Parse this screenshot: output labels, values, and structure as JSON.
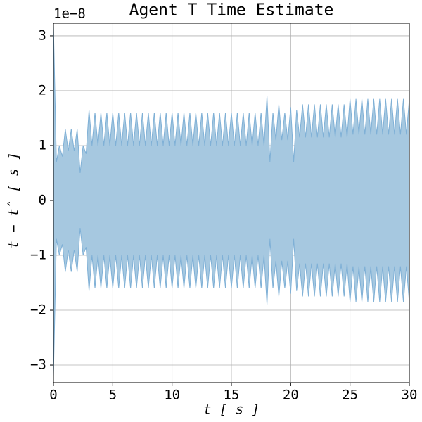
{
  "chart_data": {
    "type": "band",
    "title": "Agent T Time Estimate",
    "xlabel": "t [ s ]",
    "ylabel": "t − t̂ [ s ]",
    "y_offset_label": "1e−8",
    "fill_color": "#a6c8e0",
    "edge_color": "#7fb0d6",
    "grid": true,
    "x": [
      0,
      0.25,
      0.5,
      0.75,
      1,
      1.25,
      1.5,
      1.75,
      2,
      2.25,
      2.5,
      2.75,
      3,
      3.25,
      3.5,
      3.75,
      4,
      4.25,
      4.5,
      4.75,
      5,
      5.25,
      5.5,
      5.75,
      6,
      6.25,
      6.5,
      6.75,
      7,
      7.25,
      7.5,
      7.75,
      8,
      8.25,
      8.5,
      8.75,
      9,
      9.25,
      9.5,
      9.75,
      10,
      10.25,
      10.5,
      10.75,
      11,
      11.25,
      11.5,
      11.75,
      12,
      12.25,
      12.5,
      12.75,
      13,
      13.25,
      13.5,
      13.75,
      14,
      14.25,
      14.5,
      14.75,
      15,
      15.25,
      15.5,
      15.75,
      16,
      16.25,
      16.5,
      16.75,
      17,
      17.25,
      17.5,
      17.75,
      18,
      18.25,
      18.5,
      18.75,
      19,
      19.25,
      19.5,
      19.75,
      20,
      20.25,
      20.5,
      20.75,
      21,
      21.25,
      21.5,
      21.75,
      22,
      22.25,
      22.5,
      22.75,
      23,
      23.25,
      23.5,
      23.75,
      24,
      24.25,
      24.5,
      24.75,
      25,
      25.25,
      25.5,
      25.75,
      26,
      26.25,
      26.5,
      26.75,
      27,
      27.25,
      27.5,
      27.75,
      28,
      28.25,
      28.5,
      28.75,
      29,
      29.25,
      29.5,
      29.75,
      30
    ],
    "upper": [
      3.2,
      0.7,
      1.0,
      0.8,
      1.3,
      0.9,
      1.3,
      0.9,
      1.3,
      0.5,
      1.0,
      0.85,
      1.65,
      1.0,
      1.6,
      1.0,
      1.6,
      1.0,
      1.6,
      1.0,
      1.6,
      1.0,
      1.6,
      1.0,
      1.6,
      1.0,
      1.6,
      1.0,
      1.6,
      1.0,
      1.6,
      1.0,
      1.6,
      1.0,
      1.6,
      1.0,
      1.6,
      1.0,
      1.6,
      1.0,
      1.6,
      1.0,
      1.6,
      1.0,
      1.6,
      1.0,
      1.6,
      1.0,
      1.6,
      1.0,
      1.6,
      1.0,
      1.6,
      1.0,
      1.6,
      1.0,
      1.6,
      1.0,
      1.6,
      1.0,
      1.6,
      1.0,
      1.6,
      1.0,
      1.6,
      1.0,
      1.6,
      1.0,
      1.6,
      1.0,
      1.6,
      1.0,
      1.9,
      0.7,
      1.6,
      1.1,
      1.75,
      1.1,
      1.6,
      1.1,
      1.7,
      0.7,
      1.65,
      1.15,
      1.75,
      1.15,
      1.75,
      1.15,
      1.75,
      1.15,
      1.75,
      1.15,
      1.75,
      1.15,
      1.75,
      1.15,
      1.75,
      1.15,
      1.75,
      1.15,
      1.85,
      1.2,
      1.85,
      1.2,
      1.85,
      1.2,
      1.85,
      1.2,
      1.85,
      1.2,
      1.85,
      1.2,
      1.85,
      1.2,
      1.85,
      1.2,
      1.85,
      1.2,
      1.85,
      1.2,
      1.85
    ],
    "lower": [
      -3.2,
      -0.7,
      -1.0,
      -0.8,
      -1.3,
      -0.9,
      -1.3,
      -0.9,
      -1.3,
      -0.5,
      -1.0,
      -0.85,
      -1.65,
      -1.0,
      -1.6,
      -1.0,
      -1.6,
      -1.0,
      -1.6,
      -1.0,
      -1.6,
      -1.0,
      -1.6,
      -1.0,
      -1.6,
      -1.0,
      -1.6,
      -1.0,
      -1.6,
      -1.0,
      -1.6,
      -1.0,
      -1.6,
      -1.0,
      -1.6,
      -1.0,
      -1.6,
      -1.0,
      -1.6,
      -1.0,
      -1.6,
      -1.0,
      -1.6,
      -1.0,
      -1.6,
      -1.0,
      -1.6,
      -1.0,
      -1.6,
      -1.0,
      -1.6,
      -1.0,
      -1.6,
      -1.0,
      -1.6,
      -1.0,
      -1.6,
      -1.0,
      -1.6,
      -1.0,
      -1.6,
      -1.0,
      -1.6,
      -1.0,
      -1.6,
      -1.0,
      -1.6,
      -1.0,
      -1.6,
      -1.0,
      -1.6,
      -1.0,
      -1.9,
      -0.7,
      -1.6,
      -1.1,
      -1.75,
      -1.1,
      -1.6,
      -1.1,
      -1.7,
      -0.7,
      -1.65,
      -1.15,
      -1.75,
      -1.15,
      -1.75,
      -1.15,
      -1.75,
      -1.15,
      -1.75,
      -1.15,
      -1.75,
      -1.15,
      -1.75,
      -1.15,
      -1.75,
      -1.15,
      -1.75,
      -1.15,
      -1.85,
      -1.2,
      -1.85,
      -1.2,
      -1.85,
      -1.2,
      -1.85,
      -1.2,
      -1.85,
      -1.2,
      -1.85,
      -1.2,
      -1.85,
      -1.2,
      -1.85,
      -1.2,
      -1.85,
      -1.2,
      -1.85,
      -1.2,
      -1.85
    ],
    "xlim": [
      0,
      30
    ],
    "ylim": [
      -3.32,
      3.23
    ],
    "xticks": [
      0,
      5,
      10,
      15,
      20,
      25,
      30
    ],
    "yticks": [
      {
        "value": -3,
        "label": "−3"
      },
      {
        "value": -2,
        "label": "−2"
      },
      {
        "value": -1,
        "label": "−1"
      },
      0,
      1,
      2,
      3
    ]
  }
}
